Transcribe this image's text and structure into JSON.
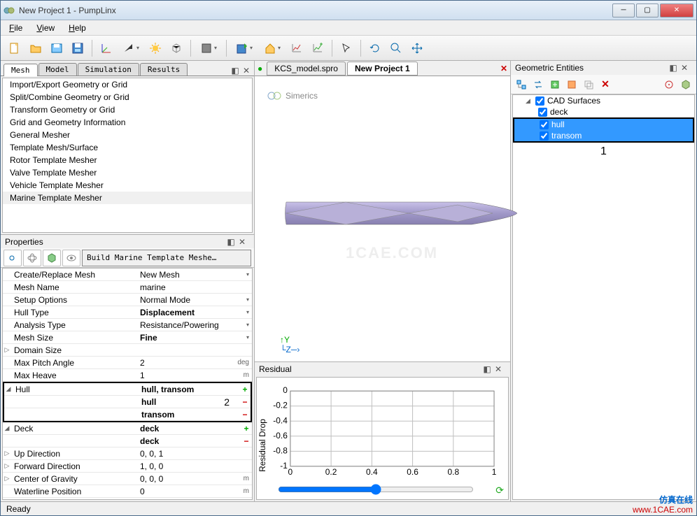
{
  "window": {
    "title": "New Project 1 - PumpLinx"
  },
  "menu": {
    "file": "File",
    "view": "View",
    "help": "Help"
  },
  "left_tabs": {
    "mesh": "Mesh",
    "model": "Model",
    "simulation": "Simulation",
    "results": "Results"
  },
  "mesh_tree": [
    "Import/Export Geometry or Grid",
    "Split/Combine Geometry or Grid",
    "Transform Geometry or Grid",
    "Grid and Geometry Information",
    "General Mesher",
    "Template Mesh/Surface",
    "Rotor Template Mesher",
    "Valve Template Mesher",
    "Vehicle Template Mesher",
    "Marine Template Mesher"
  ],
  "mesh_tree_selected": 9,
  "properties": {
    "title": "Properties",
    "build_button": "Build Marine Template Meshe…",
    "rows": [
      {
        "key": "Create/Replace Mesh",
        "val": "New Mesh",
        "dd": true
      },
      {
        "key": "Mesh Name",
        "val": "marine"
      },
      {
        "key": "Setup Options",
        "val": "Normal Mode",
        "dd": true
      },
      {
        "key": "Hull Type",
        "val": "Displacement",
        "bold": true,
        "dd": true
      },
      {
        "key": "Analysis Type",
        "val": "Resistance/Powering",
        "dd": true
      },
      {
        "key": "Mesh Size",
        "val": "Fine",
        "bold": true,
        "dd": true
      },
      {
        "key": "Domain Size",
        "val": "",
        "exp": "▷"
      },
      {
        "key": "Max Pitch Angle",
        "val": "2",
        "unit": "deg"
      },
      {
        "key": "Max Heave",
        "val": "1",
        "unit": "m"
      }
    ],
    "hull_group": {
      "label": "Hull",
      "header_val": "hull, transom",
      "items": [
        "hull",
        "transom"
      ],
      "annot": "2"
    },
    "deck_group": {
      "label": "Deck",
      "header_val": "deck",
      "items": [
        "deck"
      ]
    },
    "rows2": [
      {
        "key": "Up Direction",
        "val": "0, 0, 1",
        "exp": "▷"
      },
      {
        "key": "Forward Direction",
        "val": "1, 0, 0",
        "exp": "▷"
      },
      {
        "key": "Center of Gravity",
        "val": "0, 0, 0",
        "unit": "m",
        "exp": "▷"
      },
      {
        "key": "Waterline Position",
        "val": "0",
        "unit": "m"
      }
    ]
  },
  "doc_tabs": {
    "file1": "KCS_model.spro",
    "file2": "New Project 1"
  },
  "viewer": {
    "brand": "Simerics",
    "watermark": "1CAE.COM",
    "y": "Y",
    "z": "Z",
    "hull_color": "#b0a8d8"
  },
  "residual": {
    "title": "Residual",
    "ylabel": "Residual Drop",
    "yticks": [
      "0",
      "-0.2",
      "-0.4",
      "-0.6",
      "-0.8",
      "-1"
    ],
    "xticks": [
      "0",
      "0.2",
      "0.4",
      "0.6",
      "0.8",
      "1"
    ],
    "grid_color": "#bfbfbf",
    "bg": "#ffffff"
  },
  "entities": {
    "title": "Geometric Entities",
    "root": "CAD Surfaces",
    "items": [
      "deck",
      "hull",
      "transom"
    ],
    "selected": [
      1,
      2
    ],
    "annot": "1"
  },
  "status": "Ready",
  "brand": {
    "cn": "仿真在线",
    "url": "www.1CAE.com"
  },
  "colors": {
    "sel_blue": "#3399ff",
    "green": "#00aa00",
    "red": "#cc0000"
  }
}
